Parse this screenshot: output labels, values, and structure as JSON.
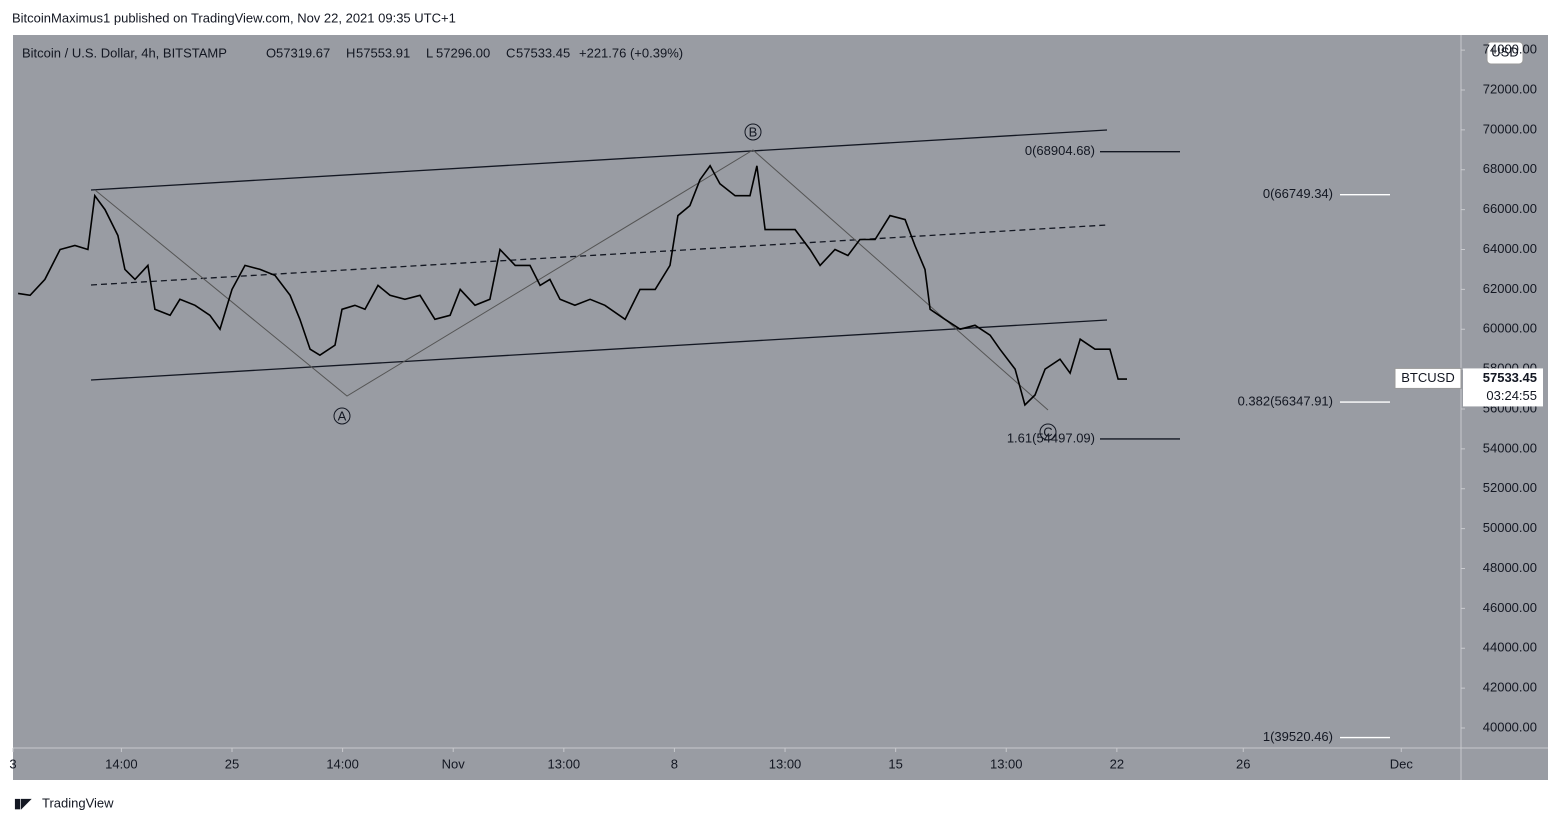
{
  "header": {
    "byline": "BitcoinMaximus1 published on TradingView.com, Nov 22, 2021 09:35 UTC+1"
  },
  "chart_data": {
    "type": "line",
    "title": "Bitcoin / U.S. Dollar, 4h, BITSTAMP",
    "ohlc": [
      {
        "label": "O",
        "text": "57319.67"
      },
      {
        "label": "H",
        "text": "57553.91"
      },
      {
        "label": "L",
        "text": "57296.00"
      },
      {
        "label": "C",
        "text": "57533.45"
      }
    ],
    "change": "+221.76 (+0.39%)",
    "x": [
      -6.77,
      -6.39,
      -5.92,
      -5.44,
      -4.97,
      -4.56,
      -4.34,
      -4.02,
      -3.61,
      -3.39,
      -3.07,
      -2.66,
      -2.44,
      -1.96,
      -1.65,
      -1.17,
      -0.7,
      -0.38,
      0,
      0.41,
      0.89,
      1.36,
      1.84,
      2.15,
      2.47,
      2.78,
      3.26,
      3.48,
      3.89,
      4.21,
      4.62,
      5.0,
      5.47,
      5.95,
      6.42,
      6.9,
      7.22,
      7.69,
      8.16,
      8.48,
      8.96,
      9.43,
      9.75,
      10.06,
      10.38,
      10.85,
      11.33,
      11.8,
      12.44,
      12.91,
      13.39,
      13.86,
      14.11,
      14.49,
      14.81,
      15.13,
      15.44,
      15.92,
      16.39,
      16.61,
      16.87,
      17.34,
      17.82,
      18.29,
      18.61,
      19.08,
      19.49,
      19.87,
      20.35,
      20.82,
      21.3,
      21.61,
      21.93,
      22.09,
      22.56,
      23.04,
      23.51,
      23.99,
      24.3,
      24.78,
      25.09,
      25.41,
      25.73,
      26.2,
      26.52,
      26.84,
      27.31,
      27.78,
      28.04,
      28.32
    ],
    "series": [
      {
        "name": "BTCUSD",
        "color": "#000000",
        "values": [
          61800,
          61700,
          62500,
          64000,
          64200,
          64000,
          66700,
          66000,
          64700,
          63000,
          62500,
          63200,
          61000,
          60700,
          61500,
          61200,
          60700,
          60000,
          62000,
          63200,
          63000,
          62700,
          61700,
          60500,
          59000,
          58700,
          59200,
          61000,
          61200,
          61000,
          62200,
          61700,
          61500,
          61700,
          60500,
          60700,
          62000,
          61200,
          61500,
          64000,
          63200,
          63200,
          62200,
          62500,
          61500,
          61200,
          61500,
          61200,
          60500,
          62000,
          62000,
          63200,
          65700,
          66200,
          67500,
          68200,
          67300,
          66700,
          66700,
          68200,
          65000,
          65000,
          65000,
          64000,
          63200,
          64000,
          63700,
          64500,
          64500,
          65700,
          65500,
          64200,
          63000,
          61000,
          60500,
          60000,
          60200,
          59700,
          59000,
          58000,
          56200,
          56700,
          58000,
          58500,
          57800,
          59500,
          59000,
          59000,
          57500,
          57500
        ]
      }
    ],
    "xlim": [
      -6.93,
      38.89
    ],
    "xticks": [
      {
        "value": -6.93,
        "label": "3"
      },
      {
        "value": -3.5,
        "label": "14:00"
      },
      {
        "value": 0,
        "label": "25"
      },
      {
        "value": 3.5,
        "label": "14:00"
      },
      {
        "value": 7,
        "label": "Nov"
      },
      {
        "value": 10.5,
        "label": "13:00"
      },
      {
        "value": 14,
        "label": "8"
      },
      {
        "value": 17.5,
        "label": "13:00"
      },
      {
        "value": 21,
        "label": "15"
      },
      {
        "value": 24.5,
        "label": "13:00"
      },
      {
        "value": 28,
        "label": "22"
      },
      {
        "value": 32,
        "label": "26"
      },
      {
        "value": 37,
        "label": "Dec"
      }
    ],
    "ylim": [
      38997,
      74758
    ],
    "yticks": [
      {
        "value": 40000,
        "label": "40000.00"
      },
      {
        "value": 42000,
        "label": "42000.00"
      },
      {
        "value": 44000,
        "label": "44000.00"
      },
      {
        "value": 46000,
        "label": "46000.00"
      },
      {
        "value": 48000,
        "label": "48000.00"
      },
      {
        "value": 50000,
        "label": "50000.00"
      },
      {
        "value": 52000,
        "label": "52000.00"
      },
      {
        "value": 54000,
        "label": "54000.00"
      },
      {
        "value": 56000,
        "label": "56000.00"
      },
      {
        "value": 58000,
        "label": "58000.00"
      },
      {
        "value": 60000,
        "label": "60000.00"
      },
      {
        "value": 62000,
        "label": "62000.00"
      },
      {
        "value": 64000,
        "label": "64000.00"
      },
      {
        "value": 66000,
        "label": "66000.00"
      },
      {
        "value": 68000,
        "label": "68000.00"
      },
      {
        "value": 70000,
        "label": "70000.00"
      },
      {
        "value": 72000,
        "label": "72000.00"
      },
      {
        "value": 74000,
        "label": "74000.00"
      }
    ],
    "currency": "USD",
    "price_tag": {
      "symbol": "BTCUSD",
      "price": 57533.45,
      "countdown": "03:24:55"
    },
    "wave_labels": [
      "A",
      "B",
      "C"
    ],
    "fib_levels": [
      {
        "value": 68904.68,
        "label": "0(68904.68)"
      },
      {
        "value": 66749.34,
        "label": "0(66749.34)"
      },
      {
        "value": 56347.91,
        "label": "0.382(56347.91)"
      },
      {
        "value": 54497.09,
        "label": "1.61(54497.09)"
      },
      {
        "value": 39520.46,
        "label": "1(39520.46)"
      }
    ]
  },
  "footer": {
    "brand": "TradingView"
  }
}
